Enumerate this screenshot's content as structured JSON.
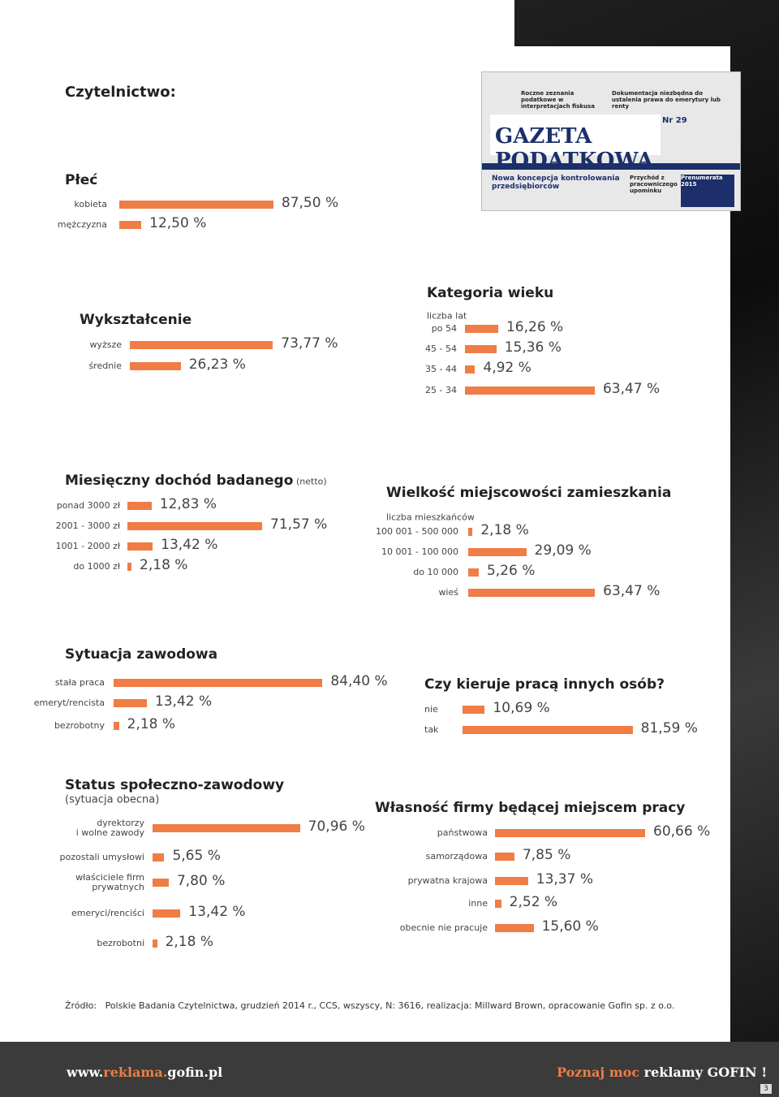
{
  "header": {
    "title": "Czytelnictwo:"
  },
  "newspaper": {
    "brand": "GAZETA PODATKOWA",
    "number": "Nr 29",
    "headline_1": "Roczne zeznania podatkowe w interpretacjach fiskusa",
    "headline_2": "Dokumentacja niezbędna do ustalenia prawa do emerytury lub renty",
    "lead": "Nowa koncepcja kontrolowania przedsiębiorców",
    "side": "Przychód z pracowniczego upominku",
    "promo": "Prenumerata 2015"
  },
  "chart_data": [
    {
      "type": "bar",
      "title": "Płeć",
      "categories": [
        "kobieta",
        "mężczyzna"
      ],
      "values": [
        87.5,
        12.5
      ],
      "value_labels": [
        "87,50 %",
        "12,50 %"
      ],
      "color": "#ef7d45"
    },
    {
      "type": "bar",
      "title": "Wykształcenie",
      "categories": [
        "wyższe",
        "średnie"
      ],
      "values": [
        73.77,
        26.23
      ],
      "value_labels": [
        "73,77 %",
        "26,23 %"
      ],
      "color": "#ef7d45"
    },
    {
      "type": "bar",
      "title": "Kategoria wieku",
      "subtitle": "liczba lat",
      "categories": [
        "po 54",
        "45 - 54",
        "35 - 44",
        "25 - 34"
      ],
      "values": [
        16.26,
        15.36,
        4.92,
        63.47
      ],
      "value_labels": [
        "16,26 %",
        "15,36 %",
        "4,92 %",
        "63,47 %"
      ],
      "color": "#ef7d45"
    },
    {
      "type": "bar",
      "title": "Miesięczny dochód badanego",
      "subtitle": "(netto)",
      "categories": [
        "ponad 3000 zł",
        "2001 - 3000 zł",
        "1001 - 2000 zł",
        "do 1000 zł"
      ],
      "values": [
        12.83,
        71.57,
        13.42,
        2.18
      ],
      "value_labels": [
        "12,83 %",
        "71,57 %",
        "13,42 %",
        "2,18 %"
      ],
      "color": "#ef7d45"
    },
    {
      "type": "bar",
      "title": "Wielkość miejscowości zamieszkania",
      "subtitle": "liczba mieszkańców",
      "categories": [
        "100 001 - 500 000",
        "10 001 - 100 000",
        "do 10 000",
        "wieś"
      ],
      "values": [
        2.18,
        29.09,
        5.26,
        63.47
      ],
      "value_labels": [
        "2,18 %",
        "29,09 %",
        "5,26 %",
        "63,47 %"
      ],
      "color": "#ef7d45"
    },
    {
      "type": "bar",
      "title": "Sytuacja zawodowa",
      "categories": [
        "stała praca",
        "emeryt/rencista",
        "bezrobotny"
      ],
      "values": [
        84.4,
        13.42,
        2.18
      ],
      "value_labels": [
        "84,40 %",
        "13,42 %",
        "2,18 %"
      ],
      "color": "#ef7d45"
    },
    {
      "type": "bar",
      "title": "Czy kieruje pracą innych osób?",
      "categories": [
        "nie",
        "tak"
      ],
      "values": [
        10.69,
        81.59
      ],
      "value_labels": [
        "10,69 %",
        "81,59 %"
      ],
      "color": "#ef7d45"
    },
    {
      "type": "bar",
      "title": "Status społeczno-zawodowy",
      "subtitle": "(sytuacja obecna)",
      "categories": [
        "dyrektorzy\ni wolne zawody",
        "pozostali umysłowi",
        "właściciele firm\nprywatnych",
        "emeryci/renciści",
        "bezrobotni"
      ],
      "values": [
        70.96,
        5.65,
        7.8,
        13.42,
        2.18
      ],
      "value_labels": [
        "70,96 %",
        "5,65 %",
        "7,80 %",
        "13,42 %",
        "2,18 %"
      ],
      "color": "#ef7d45"
    },
    {
      "type": "bar",
      "title": "Własność firmy będącej miejscem pracy",
      "categories": [
        "państwowa",
        "samorządowa",
        "prywatna krajowa",
        "inne",
        "obecnie nie pracuje"
      ],
      "values": [
        60.66,
        7.85,
        13.37,
        2.52,
        15.6
      ],
      "value_labels": [
        "60,66 %",
        "7,85 %",
        "13,37 %",
        "2,52 %",
        "15,60 %"
      ],
      "color": "#ef7d45"
    }
  ],
  "source": "Źródło:   Polskie Badania Czytelnictwa, grudzień 2014 r., CCS, wszyscy, N: 3616, realizacja: Millward Brown, opracowanie Gofin sp. z o.o.",
  "footer": {
    "url": [
      "www.",
      "reklama.",
      "gofin.pl"
    ],
    "slogan": [
      "Poznaj moc",
      "reklamy GOFIN !"
    ],
    "page": "3"
  }
}
